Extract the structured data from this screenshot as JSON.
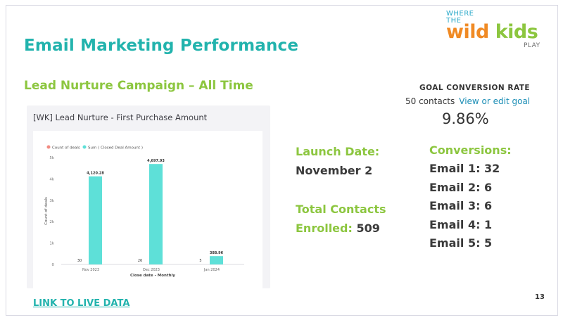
{
  "slide": {
    "title": "Email Marketing Performance",
    "subtitle": "Lead Nurture Campaign – All Time",
    "page_number": "13",
    "live_link": "LINK TO LIVE DATA"
  },
  "logo": {
    "line1": "WHERE",
    "line2": "THE",
    "wild": "wild",
    "kids": "kids",
    "line4": "PLAY"
  },
  "report": {
    "title": "[WK] Lead Nurture - First Purchase Amount"
  },
  "goal": {
    "label": "GOAL CONVERSION RATE",
    "contacts": "50 contacts",
    "edit_link": "View or edit goal",
    "rate": "9.86%"
  },
  "launch": {
    "label": "Launch Date:",
    "value": "November 2"
  },
  "contacts": {
    "label": "Total Contacts",
    "enrolled_label": "Enrolled:",
    "enrolled_value": "509"
  },
  "conversions": {
    "label": "Conversions:",
    "items": [
      "Email 1: 32",
      "Email 2: 6",
      "Email 3: 6",
      "Email 4: 1",
      "Email 5: 5"
    ]
  },
  "colors": {
    "teal": "#22b3ad",
    "green": "#8cc63f",
    "bar": "#5ee0d8",
    "count_dot": "#f28b82"
  },
  "chart_data": {
    "type": "bar",
    "categories": [
      "Nov 2023",
      "Dec 2023",
      "Jan 2024"
    ],
    "series": [
      {
        "name": "Count of deals",
        "values": [
          30,
          26,
          5
        ],
        "labels": [
          "30",
          "26",
          "5"
        ]
      },
      {
        "name": "Sum ( Closed Deal Amount )",
        "values": [
          4120.28,
          4697.93,
          388.96
        ],
        "labels": [
          "4,120.28",
          "4,697.93",
          "388.96"
        ]
      }
    ],
    "yticks": [
      "0",
      "1k",
      "2k",
      "3k",
      "4k",
      "5k"
    ],
    "ylim": [
      0,
      5000
    ],
    "xlabel": "Close date - Monthly",
    "ylabel": "Count of deals",
    "legend": "top-left"
  }
}
